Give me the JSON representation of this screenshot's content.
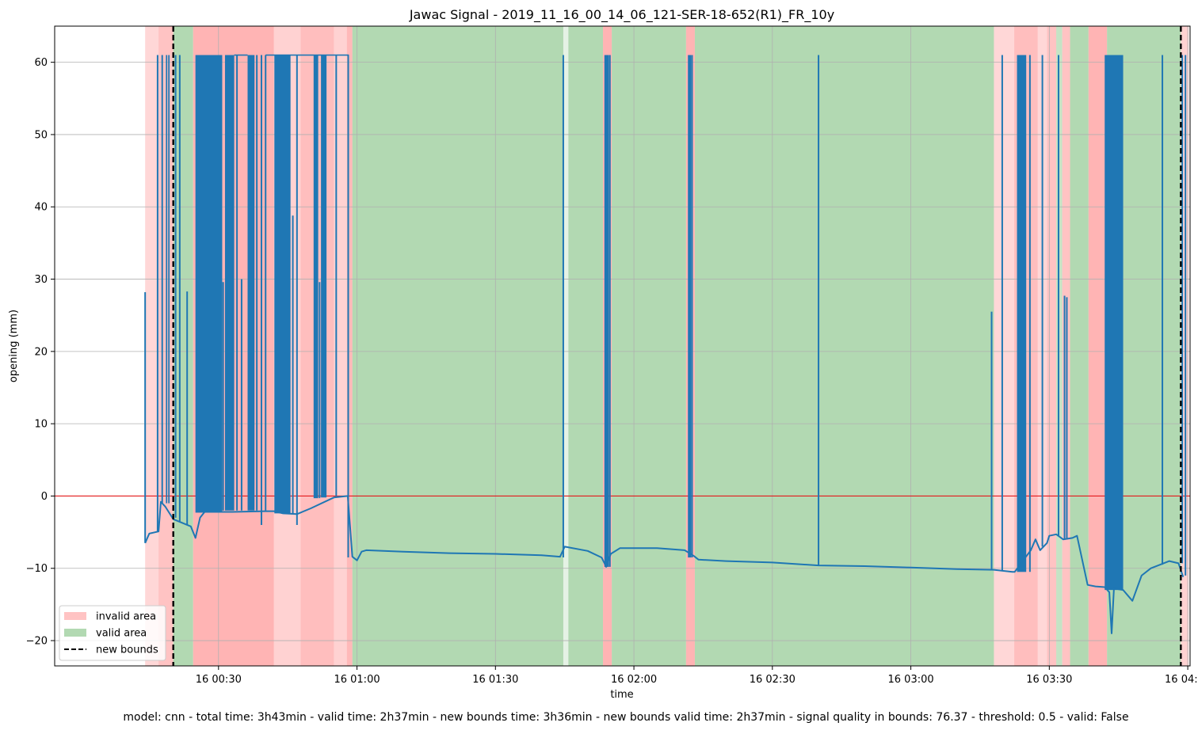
{
  "footer_text": "model: cnn - total time: 3h43min - valid time: 2h37min - new bounds time: 3h36min - new bounds valid time: 2h37min - signal quality in bounds: 76.37 - threshold: 0.5 - valid: False",
  "chart_data": {
    "type": "line",
    "title": "Jawac Signal - 2019_11_16_00_14_06_121-SER-18-652(R1)_FR_10y",
    "xlabel": "time",
    "ylabel": "opening (mm)",
    "x_unit": "minutes since 16 00:00",
    "xlim": [
      -5.5,
      240.5
    ],
    "ylim": [
      -23.5,
      65
    ],
    "x_ticks": [
      {
        "value": 30,
        "label": "16 00:30"
      },
      {
        "value": 60,
        "label": "16 01:00"
      },
      {
        "value": 90,
        "label": "16 01:30"
      },
      {
        "value": 120,
        "label": "16 02:00"
      },
      {
        "value": 150,
        "label": "16 02:30"
      },
      {
        "value": 180,
        "label": "16 03:00"
      },
      {
        "value": 210,
        "label": "16 03:30"
      },
      {
        "value": 240,
        "label": "16 04:00"
      }
    ],
    "y_ticks": [
      -20,
      -10,
      0,
      10,
      20,
      30,
      40,
      50,
      60
    ],
    "grid": true,
    "zero_line": {
      "y": 0,
      "color": "#e31a1c"
    },
    "colors": {
      "signal": "#1f77b4",
      "invalid": "#ff9b9b",
      "valid": "#7fc07f",
      "bounds": "#000000"
    },
    "legend": {
      "position": "bottom-left",
      "entries": [
        {
          "label": "invalid area",
          "kind": "invalid"
        },
        {
          "label": "valid area",
          "kind": "valid"
        },
        {
          "label": "new bounds",
          "kind": "bounds"
        }
      ]
    },
    "new_bounds": [
      20.2,
      238.5
    ],
    "areas": [
      {
        "start": 14.1,
        "end": 17,
        "kind": "invalid",
        "opacity": 0.4
      },
      {
        "start": 17,
        "end": 20.2,
        "kind": "invalid",
        "opacity": 0.6
      },
      {
        "start": 20.2,
        "end": 24.5,
        "kind": "valid",
        "opacity": 0.6
      },
      {
        "start": 24.5,
        "end": 42,
        "kind": "invalid",
        "opacity": 0.75
      },
      {
        "start": 42,
        "end": 47.8,
        "kind": "invalid",
        "opacity": 0.45
      },
      {
        "start": 47.8,
        "end": 55,
        "kind": "invalid",
        "opacity": 0.65
      },
      {
        "start": 55,
        "end": 57.8,
        "kind": "invalid",
        "opacity": 0.45
      },
      {
        "start": 57.8,
        "end": 59,
        "kind": "invalid",
        "opacity": 0.7
      },
      {
        "start": 59,
        "end": 104.7,
        "kind": "valid",
        "opacity": 0.6
      },
      {
        "start": 104.7,
        "end": 105.8,
        "kind": "valid",
        "opacity": 0.2
      },
      {
        "start": 105.8,
        "end": 113.3,
        "kind": "valid",
        "opacity": 0.6
      },
      {
        "start": 113.3,
        "end": 115.2,
        "kind": "invalid",
        "opacity": 0.75
      },
      {
        "start": 115.2,
        "end": 131.3,
        "kind": "valid",
        "opacity": 0.6
      },
      {
        "start": 131.3,
        "end": 133.2,
        "kind": "invalid",
        "opacity": 0.75
      },
      {
        "start": 133.2,
        "end": 198,
        "kind": "valid",
        "opacity": 0.6
      },
      {
        "start": 198,
        "end": 202.4,
        "kind": "invalid",
        "opacity": 0.4
      },
      {
        "start": 202.4,
        "end": 207.5,
        "kind": "invalid",
        "opacity": 0.65
      },
      {
        "start": 207.5,
        "end": 209.5,
        "kind": "invalid",
        "opacity": 0.4
      },
      {
        "start": 209.5,
        "end": 211.5,
        "kind": "invalid",
        "opacity": 0.6
      },
      {
        "start": 211.5,
        "end": 212.8,
        "kind": "valid",
        "opacity": 0.45
      },
      {
        "start": 212.8,
        "end": 214.5,
        "kind": "invalid",
        "opacity": 0.6
      },
      {
        "start": 214.5,
        "end": 218.5,
        "kind": "valid",
        "opacity": 0.6
      },
      {
        "start": 218.5,
        "end": 222.5,
        "kind": "invalid",
        "opacity": 0.75
      },
      {
        "start": 222.5,
        "end": 238.5,
        "kind": "valid",
        "opacity": 0.6
      },
      {
        "start": 238.5,
        "end": 240.2,
        "kind": "invalid",
        "opacity": 0.45
      }
    ],
    "baseline": [
      [
        14.1,
        -6.5
      ],
      [
        15,
        -5.2
      ],
      [
        17,
        -4.9
      ],
      [
        17.5,
        -0.8
      ],
      [
        18.5,
        -1.5
      ],
      [
        20.2,
        -3.2
      ],
      [
        24,
        -4.2
      ],
      [
        25,
        -5.8
      ],
      [
        26,
        -3
      ],
      [
        27,
        -2.2
      ],
      [
        33,
        -2.2
      ],
      [
        40,
        -2.1
      ],
      [
        42,
        -2.1
      ],
      [
        44,
        -2.4
      ],
      [
        47,
        -2.5
      ],
      [
        50,
        -1.7
      ],
      [
        55,
        -0.2
      ],
      [
        58,
        0
      ],
      [
        59,
        -8.4
      ],
      [
        60,
        -8.9
      ],
      [
        61,
        -7.7
      ],
      [
        62,
        -7.5
      ],
      [
        70,
        -7.7
      ],
      [
        80,
        -7.9
      ],
      [
        90,
        -8
      ],
      [
        100,
        -8.2
      ],
      [
        104,
        -8.4
      ],
      [
        105,
        -7
      ],
      [
        110,
        -7.6
      ],
      [
        113,
        -8.5
      ],
      [
        114,
        -9.8
      ],
      [
        115,
        -8
      ],
      [
        117,
        -7.2
      ],
      [
        125,
        -7.2
      ],
      [
        131,
        -7.5
      ],
      [
        133,
        -8.3
      ],
      [
        134,
        -8.8
      ],
      [
        140,
        -9
      ],
      [
        150,
        -9.2
      ],
      [
        160,
        -9.6
      ],
      [
        170,
        -9.7
      ],
      [
        180,
        -9.9
      ],
      [
        190,
        -10.1
      ],
      [
        198,
        -10.2
      ],
      [
        202,
        -10.5
      ],
      [
        202.5,
        -10.5
      ],
      [
        206,
        -7.5
      ],
      [
        207,
        -6
      ],
      [
        208,
        -7.5
      ],
      [
        209.5,
        -6.5
      ],
      [
        210,
        -5.5
      ],
      [
        211.5,
        -5.3
      ],
      [
        213,
        -6
      ],
      [
        215,
        -5.8
      ],
      [
        216,
        -5.5
      ],
      [
        218.3,
        -12.3
      ],
      [
        220,
        -12.5
      ],
      [
        222,
        -12.6
      ],
      [
        223,
        -13.3
      ],
      [
        223.5,
        -19
      ],
      [
        224,
        -12.8
      ],
      [
        226,
        -13
      ],
      [
        228,
        -14.5
      ],
      [
        230,
        -11
      ],
      [
        232,
        -10
      ],
      [
        234,
        -9.5
      ],
      [
        236,
        -9
      ],
      [
        238,
        -9.3
      ],
      [
        239,
        -11.2
      ]
    ],
    "dense_blocks": [
      {
        "start": 18.6,
        "end": 18.9,
        "low": -1,
        "high": 61
      },
      {
        "start": 19.1,
        "end": 19.4,
        "low": -1,
        "high": 61
      },
      {
        "start": 25,
        "end": 30.8,
        "low": -2.3,
        "high": 61
      },
      {
        "start": 31.4,
        "end": 33.4,
        "low": -2,
        "high": 61
      },
      {
        "start": 36.3,
        "end": 37.8,
        "low": -2,
        "high": 61
      },
      {
        "start": 42.1,
        "end": 45.6,
        "low": -2.4,
        "high": 61
      },
      {
        "start": 50.6,
        "end": 51.6,
        "low": -0.3,
        "high": 61
      },
      {
        "start": 52.2,
        "end": 53.4,
        "low": -0.2,
        "high": 61
      },
      {
        "start": 113.6,
        "end": 114.6,
        "low": -9.8,
        "high": 61
      },
      {
        "start": 131.7,
        "end": 132.4,
        "low": -8.5,
        "high": 61
      },
      {
        "start": 203,
        "end": 205,
        "low": -10.5,
        "high": 61
      },
      {
        "start": 222,
        "end": 226,
        "low": -13,
        "high": 61
      }
    ],
    "spikes": [
      {
        "x": 14.1,
        "low": -6.5,
        "high": 28.2
      },
      {
        "x": 16.8,
        "low": -5,
        "high": 61
      },
      {
        "x": 17.8,
        "low": -1,
        "high": 61
      },
      {
        "x": 20.7,
        "low": -3,
        "high": 61
      },
      {
        "x": 21.6,
        "low": -3.5,
        "high": 61
      },
      {
        "x": 23.2,
        "low": -4,
        "high": 28.3
      },
      {
        "x": 31,
        "low": -2,
        "high": 29.6
      },
      {
        "x": 34,
        "low": -2,
        "high": 61
      },
      {
        "x": 35,
        "low": -2,
        "high": 30
      },
      {
        "x": 38.3,
        "low": -2,
        "high": 61
      },
      {
        "x": 39.3,
        "low": -4,
        "high": 61
      },
      {
        "x": 40.2,
        "low": -2,
        "high": 61
      },
      {
        "x": 46.1,
        "low": -2.5,
        "high": 38.8
      },
      {
        "x": 47,
        "low": -4,
        "high": 61
      },
      {
        "x": 51.9,
        "low": -0.3,
        "high": 29.6
      },
      {
        "x": 55.5,
        "low": 0,
        "high": 61
      },
      {
        "x": 58.1,
        "low": -8.5,
        "high": 61
      },
      {
        "x": 104.7,
        "low": -8.5,
        "high": 61
      },
      {
        "x": 114.8,
        "low": -9.8,
        "high": 61
      },
      {
        "x": 132.6,
        "low": -8.5,
        "high": 61
      },
      {
        "x": 160,
        "low": -9.6,
        "high": 61
      },
      {
        "x": 197.5,
        "low": -10.2,
        "high": 25.5
      },
      {
        "x": 199.8,
        "low": -10.3,
        "high": 61
      },
      {
        "x": 205.8,
        "low": -10.5,
        "high": 61
      },
      {
        "x": 208.5,
        "low": -7,
        "high": 61
      },
      {
        "x": 212,
        "low": -5.5,
        "high": 61
      },
      {
        "x": 213.3,
        "low": -6,
        "high": 27.7
      },
      {
        "x": 213.8,
        "low": -6,
        "high": 27.5
      },
      {
        "x": 234.5,
        "low": -9.5,
        "high": 61
      },
      {
        "x": 238.8,
        "low": -9.3,
        "high": 61
      },
      {
        "x": 239.5,
        "low": -11,
        "high": 61
      }
    ]
  }
}
